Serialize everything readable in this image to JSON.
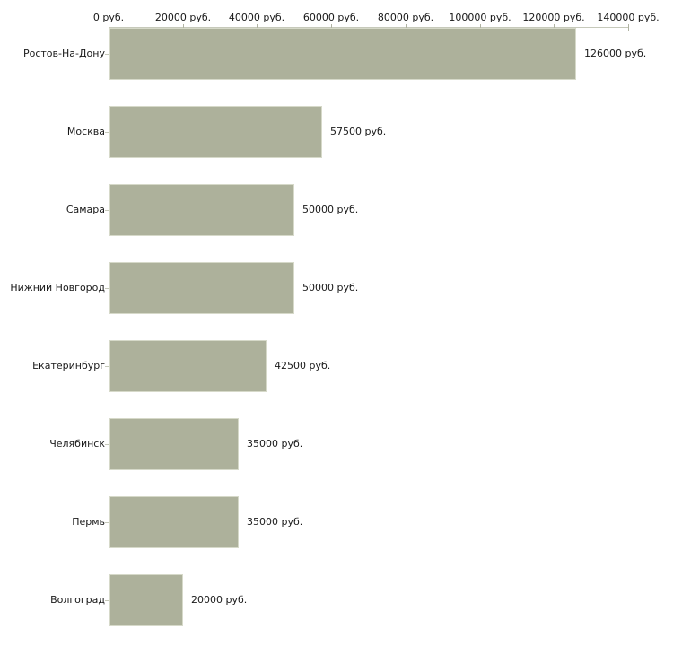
{
  "chart_data": {
    "type": "bar",
    "orientation": "horizontal",
    "title": "",
    "categories": [
      "Ростов-На-Дону",
      "Москва",
      "Самара",
      "Нижний Новгород",
      "Екатеринбург",
      "Челябинск",
      "Пермь",
      "Волгоград"
    ],
    "values": [
      126000,
      57500,
      50000,
      50000,
      42500,
      35000,
      35000,
      20000
    ],
    "value_labels": [
      "126000 руб.",
      "57500 руб.",
      "50000 руб.",
      "50000 руб.",
      "42500 руб.",
      "35000 руб.",
      "35000 руб.",
      "20000 руб."
    ],
    "x_ticks": [
      0,
      20000,
      40000,
      60000,
      80000,
      100000,
      120000,
      140000
    ],
    "x_tick_labels": [
      "0 руб.",
      "20000 руб.",
      "40000 руб.",
      "60000 руб.",
      "80000 руб.",
      "100000 руб.",
      "120000 руб.",
      "140000 руб."
    ],
    "xlim": [
      0,
      140000
    ],
    "unit": "руб.",
    "grid": false,
    "legend": null,
    "xlabel": "",
    "ylabel": "",
    "colors": {
      "bar_fill": "#adb19b",
      "bar_edge": "#d6d9c9",
      "axis_line": "#c6c9ba",
      "tick_mark": "#b0b3a2",
      "text": "#191919",
      "background": "#ffffff"
    }
  }
}
